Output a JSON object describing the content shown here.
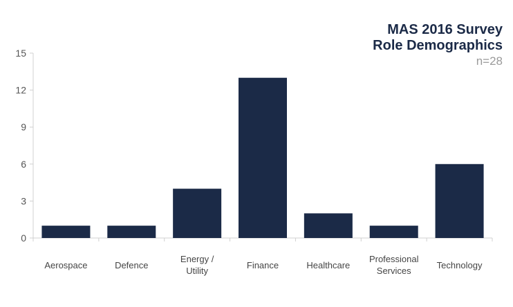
{
  "chart_data": {
    "type": "bar",
    "title": [
      "MAS 2016 Survey",
      "Role Demographics"
    ],
    "subtitle": "n=28",
    "categories": [
      "Aerospace",
      "Defence",
      "Energy / Utility",
      "Finance",
      "Healthcare",
      "Professional Services",
      "Technology"
    ],
    "category_label_lines": [
      [
        "Aerospace"
      ],
      [
        "Defence"
      ],
      [
        "Energy /",
        "Utility"
      ],
      [
        "Finance"
      ],
      [
        "Healthcare"
      ],
      [
        "Professional",
        "Services"
      ],
      [
        "Technology"
      ]
    ],
    "values": [
      1,
      1,
      4,
      13,
      2,
      1,
      6
    ],
    "ylim": [
      0,
      15
    ],
    "yticks": [
      0,
      3,
      6,
      9,
      12,
      15
    ],
    "xlabel": "",
    "ylabel": "",
    "grid": false,
    "legend": "none",
    "colors": {
      "bar": "#1b2a47",
      "axis": "#d0d0d0",
      "title": "#1b2a47",
      "subtitle": "#9a9a9a"
    }
  }
}
